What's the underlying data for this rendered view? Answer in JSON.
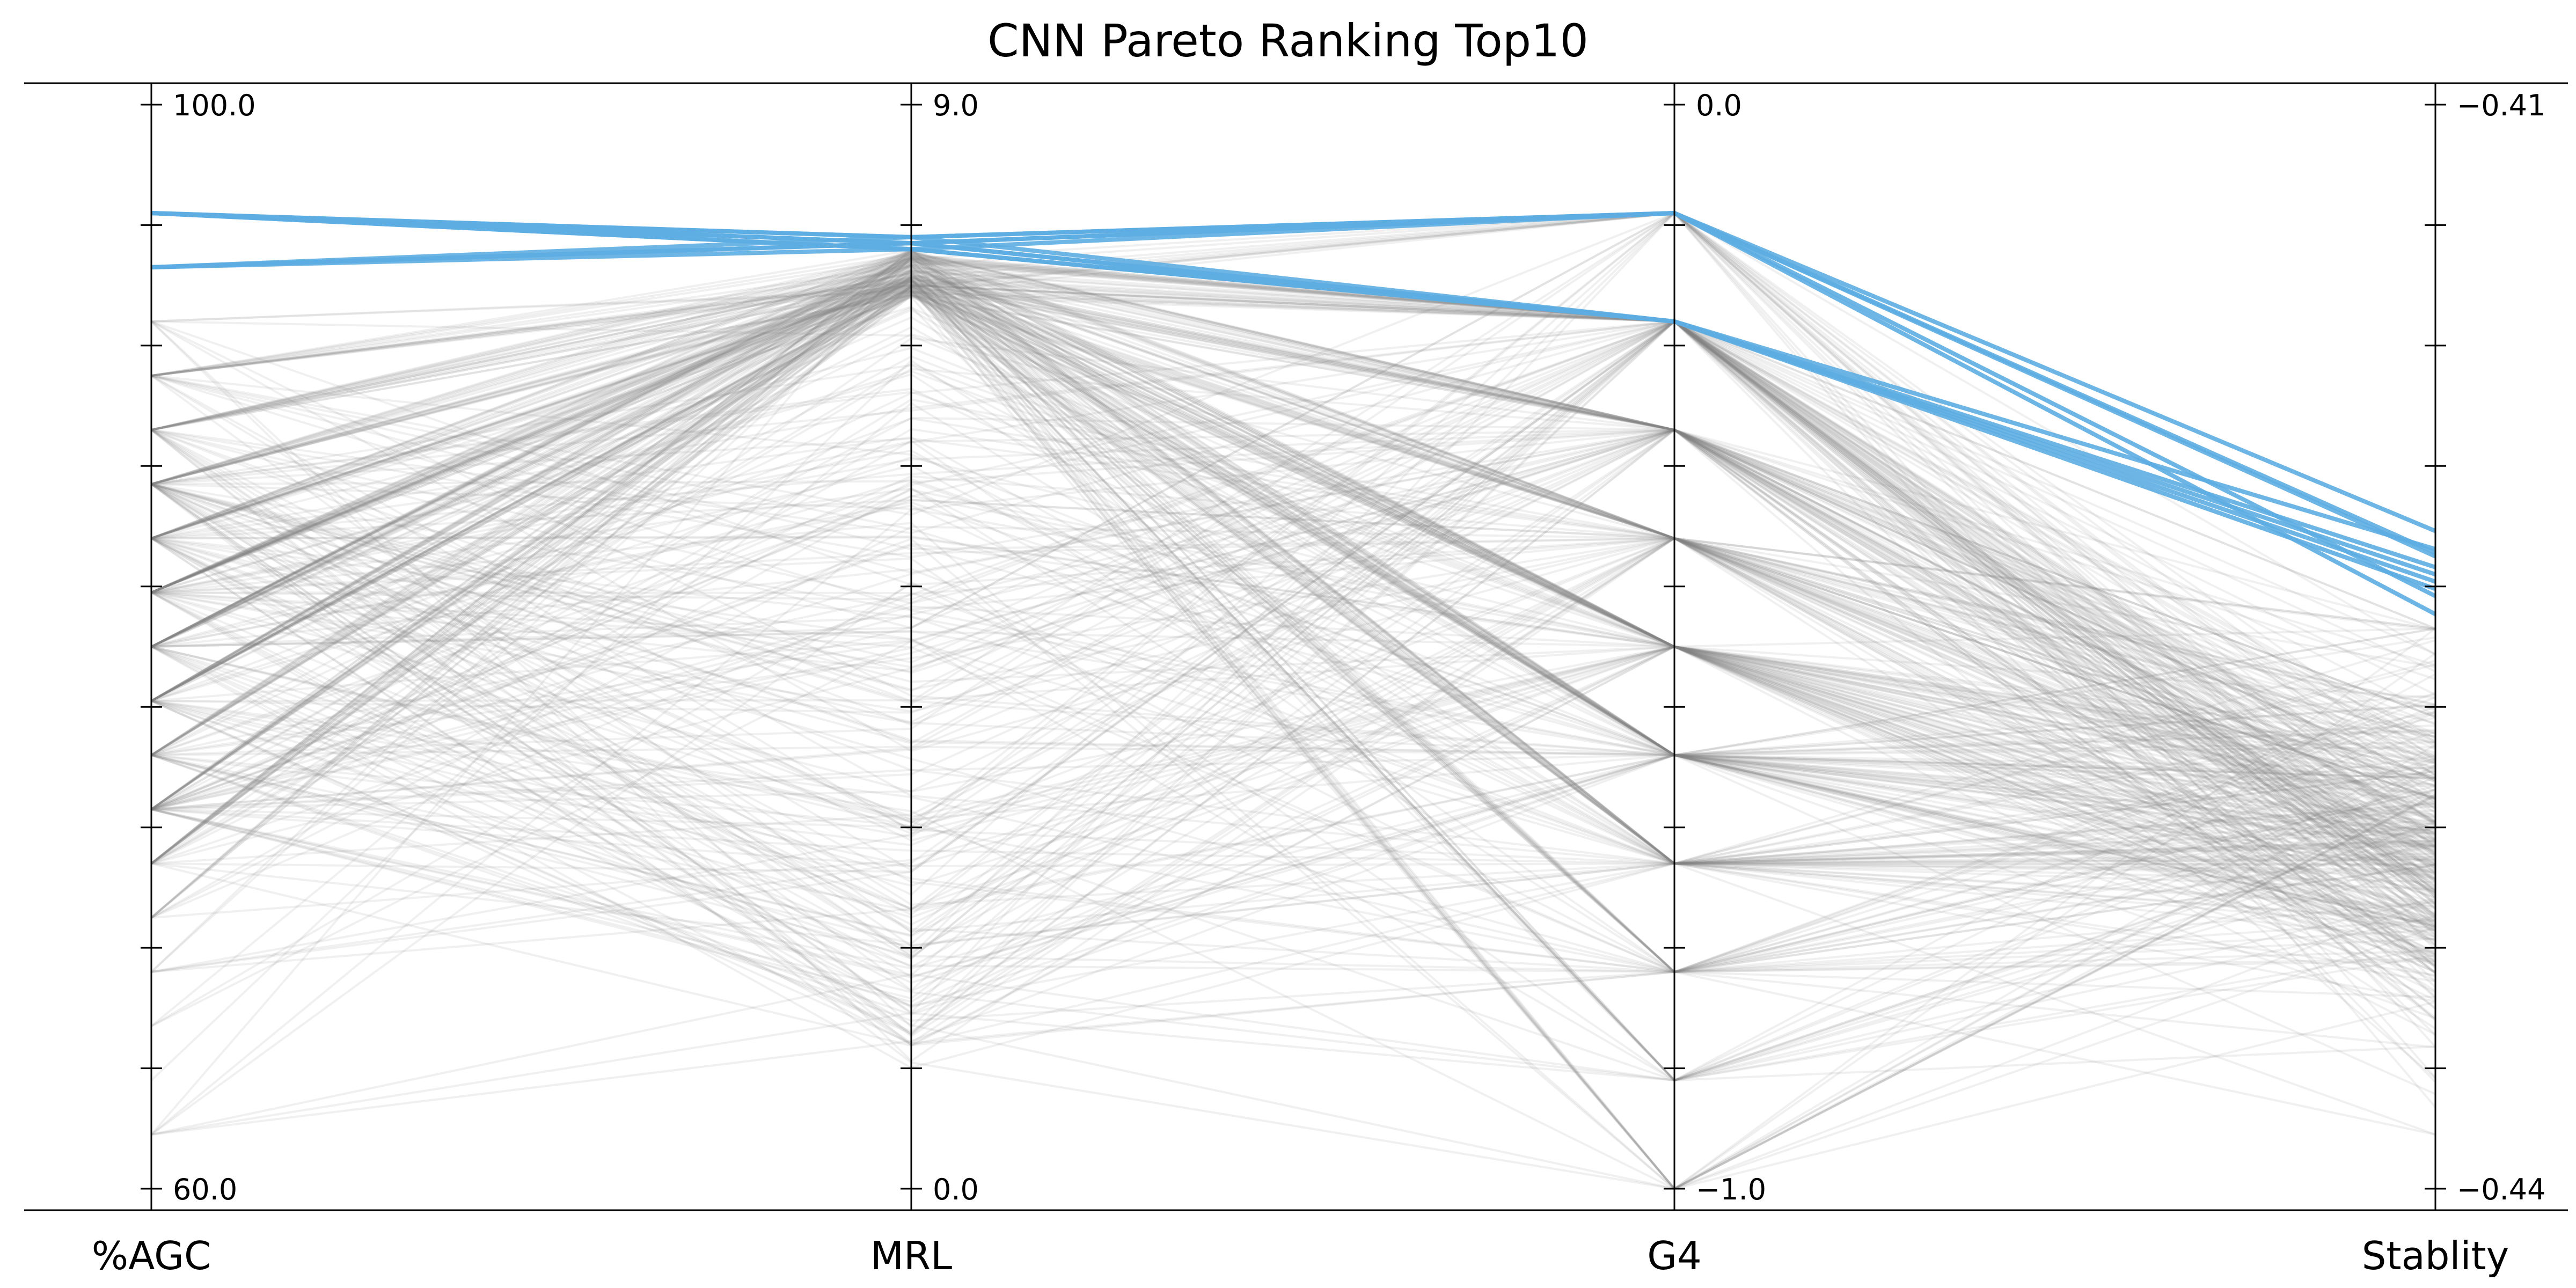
{
  "chart_data": {
    "type": "parallel-coordinates",
    "title": "CNN Pareto Ranking Top10",
    "axes": [
      {
        "name": "%AGC",
        "min": 60.0,
        "max": 100.0,
        "min_label": "60.0",
        "max_label": "100.0"
      },
      {
        "name": "MRL",
        "min": 0.0,
        "max": 9.0,
        "min_label": "0.0",
        "max_label": "9.0"
      },
      {
        "name": "G4",
        "min": -1.0,
        "max": 0.0,
        "min_label": "−1.0",
        "max_label": "0.0"
      },
      {
        "name": "Stablity",
        "min": -0.44,
        "max": -0.41,
        "min_label": "−0.44",
        "max_label": "−0.41"
      }
    ],
    "highlight_color": "#5DADE2",
    "background_color": "#808080",
    "highlighted": [
      {
        "values": [
          96.0,
          7.9,
          -0.1,
          -0.4241
        ]
      },
      {
        "values": [
          94.0,
          7.9,
          -0.1,
          -0.4218
        ]
      },
      {
        "values": [
          94.0,
          7.85,
          -0.1,
          -0.4224
        ]
      },
      {
        "values": [
          96.0,
          7.8,
          -0.2,
          -0.4228
        ]
      },
      {
        "values": [
          96.0,
          7.85,
          -0.2,
          -0.4232
        ]
      },
      {
        "values": [
          94.0,
          7.85,
          -0.2,
          -0.4234
        ]
      },
      {
        "values": [
          96.0,
          7.9,
          -0.2,
          -0.4223
        ]
      },
      {
        "values": [
          96.0,
          7.85,
          -0.1,
          -0.4225
        ]
      },
      {
        "values": [
          94.0,
          7.8,
          -0.2,
          -0.423
        ]
      },
      {
        "values": [
          96.0,
          7.8,
          -0.1,
          -0.4236
        ]
      }
    ],
    "background_sample_count": 420
  }
}
